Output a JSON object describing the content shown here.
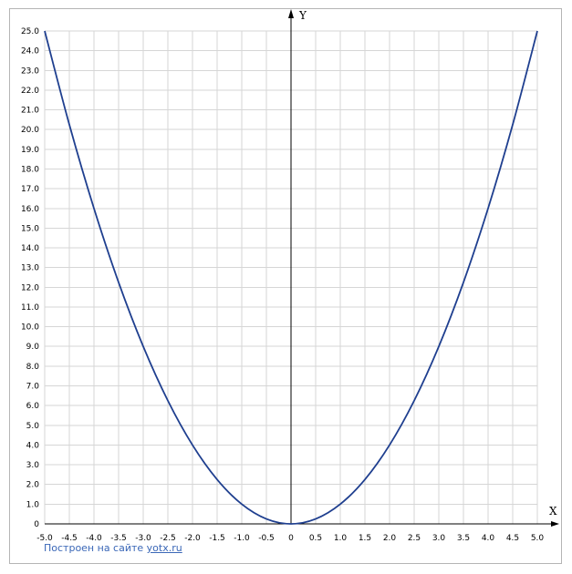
{
  "chart_data": {
    "type": "line",
    "title": "",
    "xlabel": "X",
    "ylabel": "Y",
    "xlim": [
      -5.0,
      5.0
    ],
    "ylim": [
      0,
      25.0
    ],
    "x_ticks": [
      "-5.0",
      "-4.5",
      "-4.0",
      "-3.5",
      "-3.0",
      "-2.5",
      "-2.0",
      "-1.5",
      "-1.0",
      "-0.5",
      "0",
      "0.5",
      "1.0",
      "1.5",
      "2.0",
      "2.5",
      "3.0",
      "3.5",
      "4.0",
      "4.5",
      "5.0"
    ],
    "y_ticks": [
      "0",
      "1.0",
      "2.0",
      "3.0",
      "4.0",
      "5.0",
      "6.0",
      "7.0",
      "8.0",
      "9.0",
      "10.0",
      "11.0",
      "12.0",
      "13.0",
      "14.0",
      "15.0",
      "16.0",
      "17.0",
      "18.0",
      "19.0",
      "20.0",
      "21.0",
      "22.0",
      "23.0",
      "24.0",
      "25.0"
    ],
    "grid": true,
    "series": [
      {
        "color": "#1f3f8f",
        "x": [
          -5.0,
          -4.5,
          -4.0,
          -3.5,
          -3.0,
          -2.5,
          -2.0,
          -1.5,
          -1.0,
          -0.5,
          0,
          0.5,
          1.0,
          1.5,
          2.0,
          2.5,
          3.0,
          3.5,
          4.0,
          4.5,
          5.0
        ],
        "y": [
          25.0,
          20.25,
          16.0,
          12.25,
          9.0,
          6.25,
          4.0,
          2.25,
          1.0,
          0.25,
          0,
          0.25,
          1.0,
          2.25,
          4.0,
          6.25,
          9.0,
          12.25,
          16.0,
          20.25,
          25.0
        ]
      }
    ]
  },
  "credit": {
    "text": "Построен на сайте ",
    "link": "yotx.ru"
  }
}
